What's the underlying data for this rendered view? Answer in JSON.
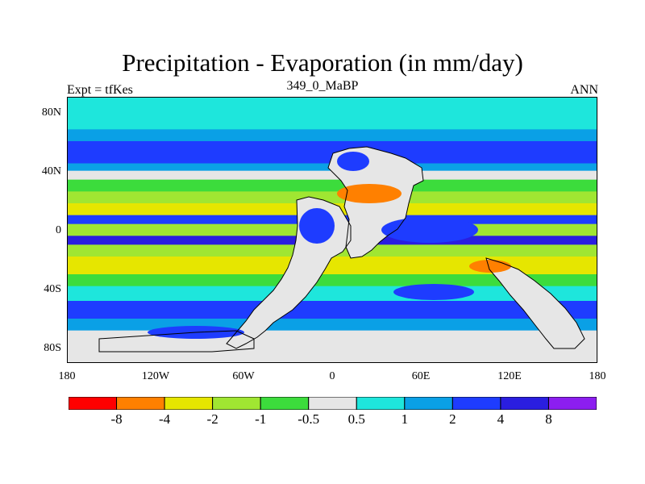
{
  "title": "Precipitation - Evaporation (in mm/day)",
  "subtitle": "349_0_MaBP",
  "left_label": "Expt = tfKes",
  "right_label": "ANN",
  "x_ticks": [
    "180",
    "120W",
    "60W",
    "0",
    "60E",
    "120E",
    "180"
  ],
  "y_ticks": [
    "80N",
    "40N",
    "0",
    "40S",
    "80S"
  ],
  "colorbar": {
    "colors": [
      "#ff0000",
      "#ff8000",
      "#e6e600",
      "#a0e632",
      "#3cdc3c",
      "#e6e6e6",
      "#1ee6dc",
      "#0aa0e6",
      "#1e3cff",
      "#2a1ee0",
      "#8c1ef0"
    ],
    "labels": [
      "-8",
      "-4",
      "-2",
      "-1",
      "-0.5",
      "0.5",
      "1",
      "2",
      "4",
      "8"
    ]
  },
  "chart_data": {
    "type": "heatmap",
    "title": "Precipitation - Evaporation (in mm/day)",
    "subtitle": "349_0_MaBP",
    "xlabel": "",
    "ylabel": "",
    "xlim": [
      -180,
      180
    ],
    "ylim": [
      -90,
      90
    ],
    "levels": [
      -8,
      -4,
      -2,
      -1,
      -0.5,
      0.5,
      1,
      2,
      4,
      8
    ],
    "zonal_bands": [
      {
        "lat": [
          68,
          90
        ],
        "class": "0.5 to 1"
      },
      {
        "lat": [
          60,
          68
        ],
        "class": "1 to 2"
      },
      {
        "lat": [
          45,
          60
        ],
        "class": "2 to 4"
      },
      {
        "lat": [
          40,
          45
        ],
        "class": "1 to 2"
      },
      {
        "lat": [
          34,
          40
        ],
        "class": "-0.5 to 0.5"
      },
      {
        "lat": [
          26,
          34
        ],
        "class": "-1 to -0.5"
      },
      {
        "lat": [
          18,
          26
        ],
        "class": "-2 to -1"
      },
      {
        "lat": [
          10,
          18
        ],
        "class": "-4 to -2"
      },
      {
        "lat": [
          4,
          10
        ],
        "class": "2 to 4"
      },
      {
        "lat": [
          -4,
          4
        ],
        "class": "-2 to -1"
      },
      {
        "lat": [
          -10,
          -4
        ],
        "class": "4 to 8"
      },
      {
        "lat": [
          -18,
          -10
        ],
        "class": "-2 to -1"
      },
      {
        "lat": [
          -30,
          -18
        ],
        "class": "-4 to -2"
      },
      {
        "lat": [
          -38,
          -30
        ],
        "class": "-1 to -0.5"
      },
      {
        "lat": [
          -48,
          -38
        ],
        "class": "0.5 to 1"
      },
      {
        "lat": [
          -60,
          -48
        ],
        "class": "2 to 4"
      },
      {
        "lat": [
          -68,
          -60
        ],
        "class": "1 to 2"
      },
      {
        "lat": [
          -90,
          -68
        ],
        "class": "-0.5 to 0.5"
      }
    ]
  }
}
